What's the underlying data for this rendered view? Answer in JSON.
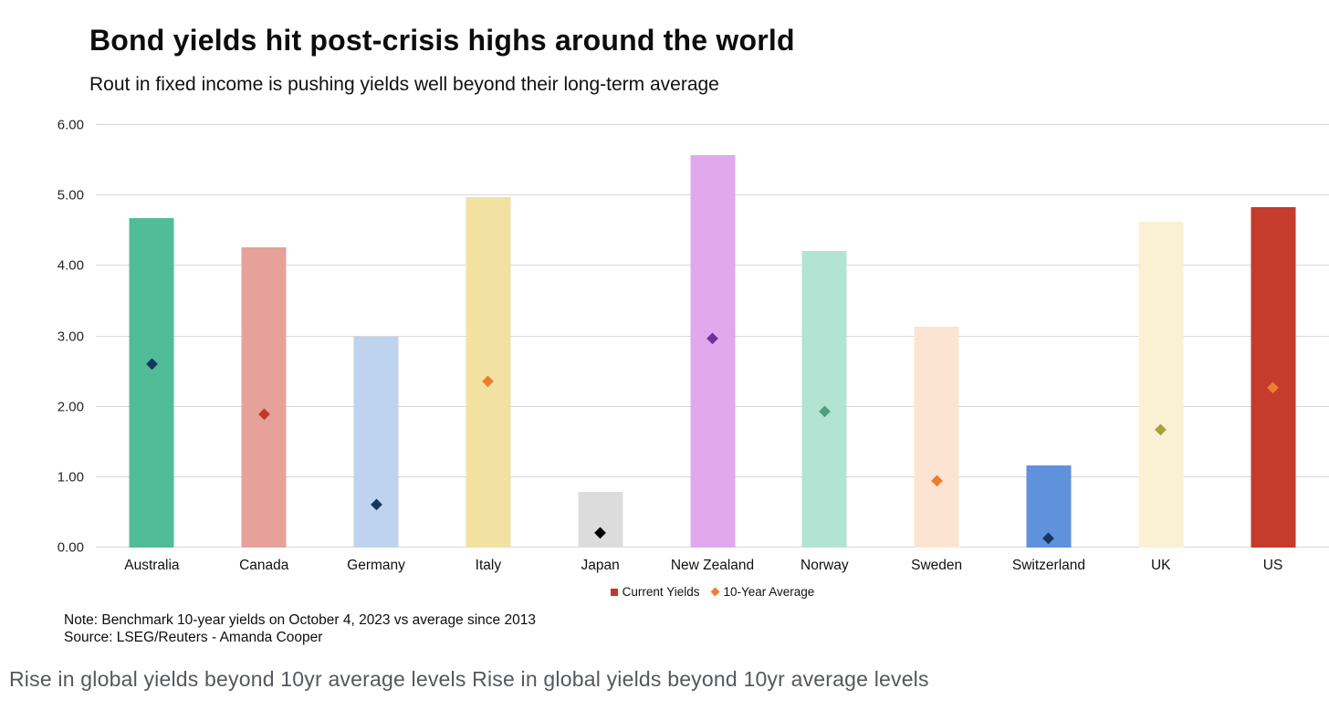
{
  "header": {
    "title": "Bond yields hit post-crisis highs around the world",
    "subtitle": "Rout in fixed income is pushing yields well beyond their long-term average"
  },
  "chart_data": {
    "type": "bar",
    "title": "Bond yields hit post-crisis highs around the world",
    "subtitle": "Rout in fixed income is pushing yields well beyond their long-term average",
    "categories": [
      "Australia",
      "Canada",
      "Germany",
      "Italy",
      "Japan",
      "New Zealand",
      "Norway",
      "Sweden",
      "Switzerland",
      "UK",
      "US"
    ],
    "series": [
      {
        "name": "Current Yields",
        "values": [
          4.68,
          4.26,
          3.0,
          4.97,
          0.79,
          5.57,
          4.21,
          3.14,
          1.17,
          4.63,
          4.83
        ]
      },
      {
        "name": "10-Year Average",
        "values": [
          2.61,
          1.9,
          0.61,
          2.37,
          0.21,
          2.97,
          1.94,
          0.95,
          0.13,
          1.68,
          2.27
        ]
      }
    ],
    "bar_colors": [
      "#50bd98",
      "#e7a19b",
      "#bed3ed",
      "#f1e2a2",
      "#dcdcdc",
      "#dfa9ec",
      "#b3e3d3",
      "#fbe4d1",
      "#6092dc",
      "#faf0d4",
      "#c53b2c"
    ],
    "marker_colors": [
      "#17365d",
      "#c0392b",
      "#17365d",
      "#ed7d31",
      "#000000",
      "#7030a0",
      "#4e9e7f",
      "#ed7d31",
      "#17365d",
      "#a6a23c",
      "#ed7d31"
    ],
    "ylim": [
      0,
      6
    ],
    "yticks": [
      "0.00",
      "1.00",
      "2.00",
      "3.00",
      "4.00",
      "5.00",
      "6.00"
    ],
    "grid": true,
    "legend_position": "bottom-center",
    "legend": [
      {
        "label": "Current Yields",
        "color": "#c0392b",
        "shape": "square"
      },
      {
        "label": "10-Year Average",
        "color": "#ed7d31",
        "shape": "diamond"
      }
    ]
  },
  "footnotes": {
    "note": "Note: Benchmark 10-year yields on October 4, 2023 vs average since 2013",
    "source": "Source: LSEG/Reuters - Amanda Cooper"
  },
  "caption": "Rise in global yields beyond 10yr average levels Rise in global yields beyond 10yr average levels"
}
